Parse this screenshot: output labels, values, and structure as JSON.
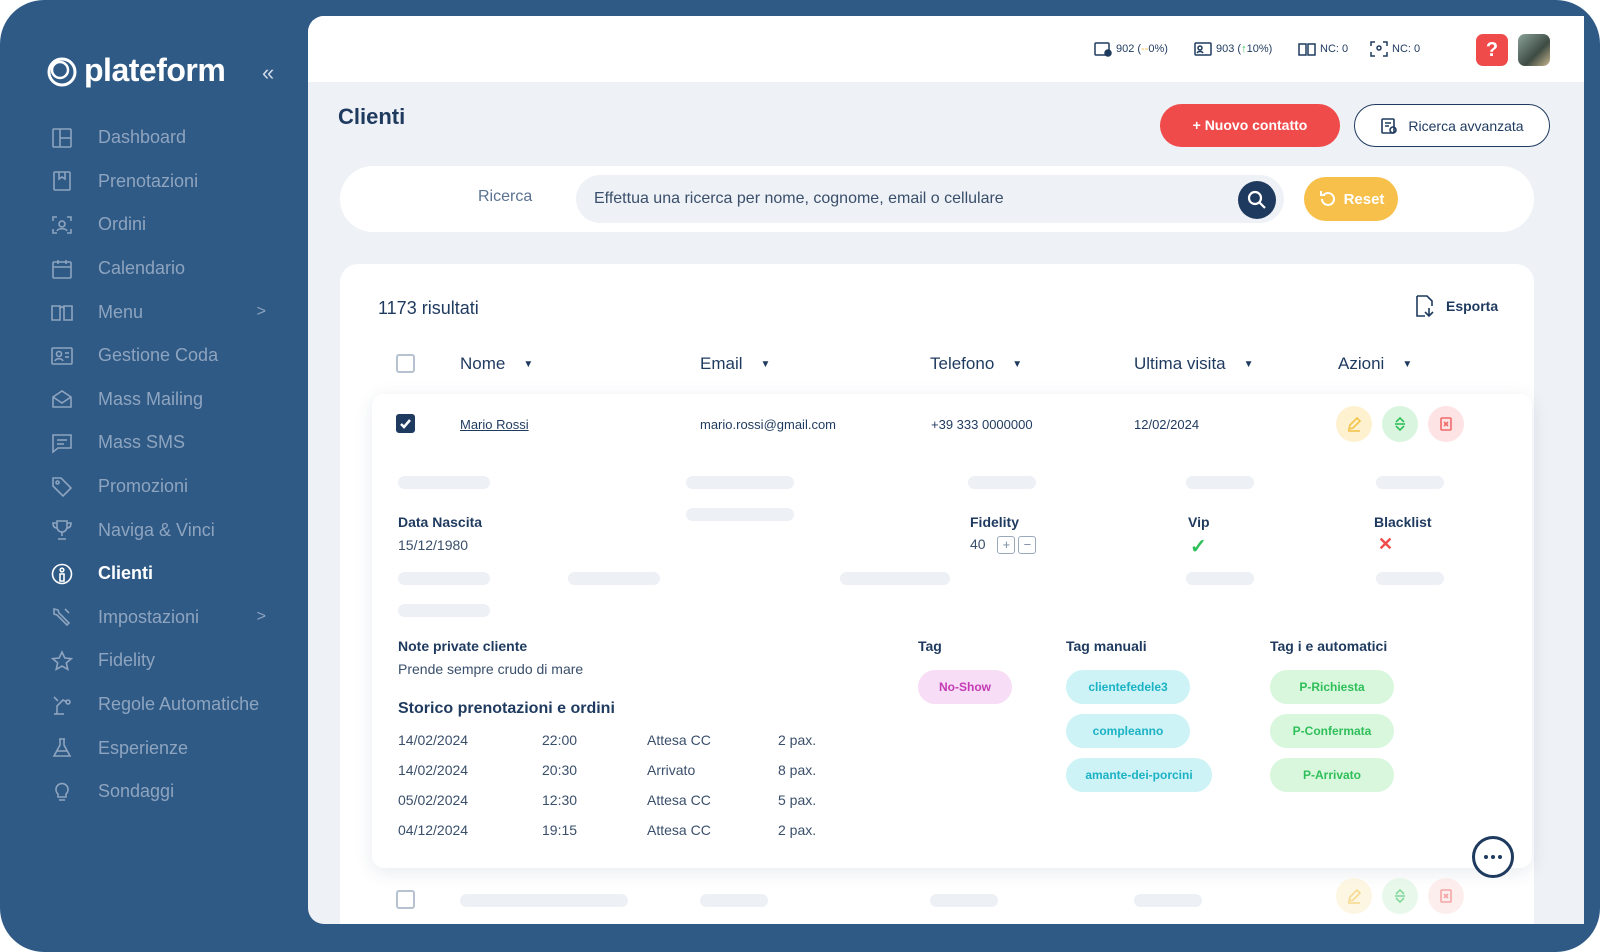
{
  "brand": {
    "name": "plateform",
    "collapse_glyph": "«"
  },
  "sidebar": {
    "items": [
      {
        "label": "Dashboard",
        "icon": "dashboard-icon"
      },
      {
        "label": "Prenotazioni",
        "icon": "bookmark-icon"
      },
      {
        "label": "Ordini",
        "icon": "scan-icon"
      },
      {
        "label": "Calendario",
        "icon": "calendar-icon"
      },
      {
        "label": "Menu",
        "icon": "book-icon",
        "chevron": ">"
      },
      {
        "label": "Gestione Coda",
        "icon": "queue-icon"
      },
      {
        "label": "Mass Mailing",
        "icon": "mail-icon"
      },
      {
        "label": "Mass SMS",
        "icon": "sms-icon"
      },
      {
        "label": "Promozioni",
        "icon": "tag-icon"
      },
      {
        "label": "Naviga & Vinci",
        "icon": "trophy-icon"
      },
      {
        "label": "Clienti",
        "icon": "user-circle-icon",
        "active": true
      },
      {
        "label": "Impostazioni",
        "icon": "wrench-icon",
        "chevron": ">"
      },
      {
        "label": "Fidelity",
        "icon": "star-icon"
      },
      {
        "label": "Regole Automatiche",
        "icon": "robot-arm-icon"
      },
      {
        "label": "Esperienze",
        "icon": "flask-icon"
      },
      {
        "label": "Sondaggi",
        "icon": "bulb-icon"
      }
    ]
  },
  "topbar": {
    "stats": [
      {
        "value": "902 (",
        "trend": "--",
        "pct": "0%)",
        "icon": "reservation-stat-icon"
      },
      {
        "value": "903 (",
        "trend": "↑",
        "pct": "10%)",
        "icon": "queue-stat-icon"
      },
      {
        "value": "NC: 0",
        "trend": "",
        "pct": "",
        "icon": "menu-stat-icon"
      },
      {
        "value": "NC: 0",
        "trend": "",
        "pct": "",
        "icon": "scan-stat-icon"
      }
    ],
    "help_label": "?"
  },
  "page": {
    "title": "Clienti",
    "new_contact_label": "+ Nuovo contatto",
    "advanced_search_label": "Ricerca avvanzata"
  },
  "search": {
    "label": "Ricerca",
    "placeholder": "Effettua una ricerca per nome, cognome, email o cellulare",
    "value": "",
    "reset_label": "Reset"
  },
  "results": {
    "count_label": "1173 risultati",
    "export_label": "Esporta",
    "columns": [
      "Nome",
      "Email",
      "Telefono",
      "Ultima visita",
      "Azioni"
    ],
    "caret": "▼",
    "row": {
      "name": "Mario Rossi",
      "email": "mario.rossi@gmail.com",
      "phone": "+39 333 0000000",
      "last_visit": "12/02/2024",
      "checked": true
    }
  },
  "details": {
    "birth_label": "Data Nascita",
    "birth_value": "15/12/1980",
    "fidelity_label": "Fidelity",
    "fidelity_value": "40",
    "plus": "+",
    "minus": "−",
    "vip_label": "Vip",
    "vip_value": "✓",
    "blacklist_label": "Blacklist",
    "blacklist_value": "✕",
    "notes_label": "Note private cliente",
    "notes_value": "Prende sempre crudo di mare",
    "history_title": "Storico prenotazioni e ordini",
    "history": [
      {
        "date": "14/02/2024",
        "time": "22:00",
        "status": "Attesa CC",
        "pax": "2 pax."
      },
      {
        "date": "14/02/2024",
        "time": "20:30",
        "status": "Arrivato",
        "pax": "8 pax."
      },
      {
        "date": "05/02/2024",
        "time": "12:30",
        "status": "Attesa CC",
        "pax": "5 pax."
      },
      {
        "date": "04/12/2024",
        "time": "19:15",
        "status": "Attesa CC",
        "pax": "2 pax."
      }
    ],
    "tag_label": "Tag",
    "tags": [
      "No-Show"
    ],
    "manual_tags_label": "Tag manuali",
    "manual_tags": [
      "clientefedele3",
      "compleanno",
      "amante-dei-porcini"
    ],
    "auto_tags_label": "Tag i e automatici",
    "auto_tags": [
      "P-Richiesta",
      "P-Confermata",
      "P-Arrivato"
    ]
  },
  "colors": {
    "sidebar_bg": "#2f5a86",
    "primary": "#1f3a5f",
    "accent_red": "#f04b4b",
    "accent_yellow": "#f7c04a",
    "success": "#2fbf5a"
  }
}
